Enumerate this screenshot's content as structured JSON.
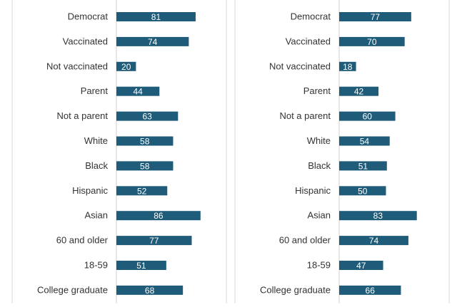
{
  "chart_data": [
    {
      "type": "bar",
      "orientation": "horizontal",
      "categories": [
        "Democrat",
        "Vaccinated",
        "Not vaccinated",
        "Parent",
        "Not a parent",
        "White",
        "Black",
        "Hispanic",
        "Asian",
        "60 and older",
        "18-59",
        "College graduate"
      ],
      "values": [
        81,
        74,
        20,
        44,
        63,
        58,
        58,
        52,
        86,
        77,
        51,
        68
      ],
      "data_labels": true,
      "grid": false
    },
    {
      "type": "bar",
      "orientation": "horizontal",
      "categories": [
        "Democrat",
        "Vaccinated",
        "Not vaccinated",
        "Parent",
        "Not a parent",
        "White",
        "Black",
        "Hispanic",
        "Asian",
        "60 and older",
        "18-59",
        "College graduate"
      ],
      "values": [
        77,
        70,
        18,
        42,
        60,
        54,
        51,
        50,
        83,
        74,
        47,
        66
      ],
      "data_labels": true,
      "grid": false
    }
  ],
  "colors": {
    "bar": "#1f5c7a",
    "bar_label": "#ffffff",
    "category_label": "#333333",
    "divider": "#d9d9d9",
    "axis": "#d0d0d0"
  }
}
